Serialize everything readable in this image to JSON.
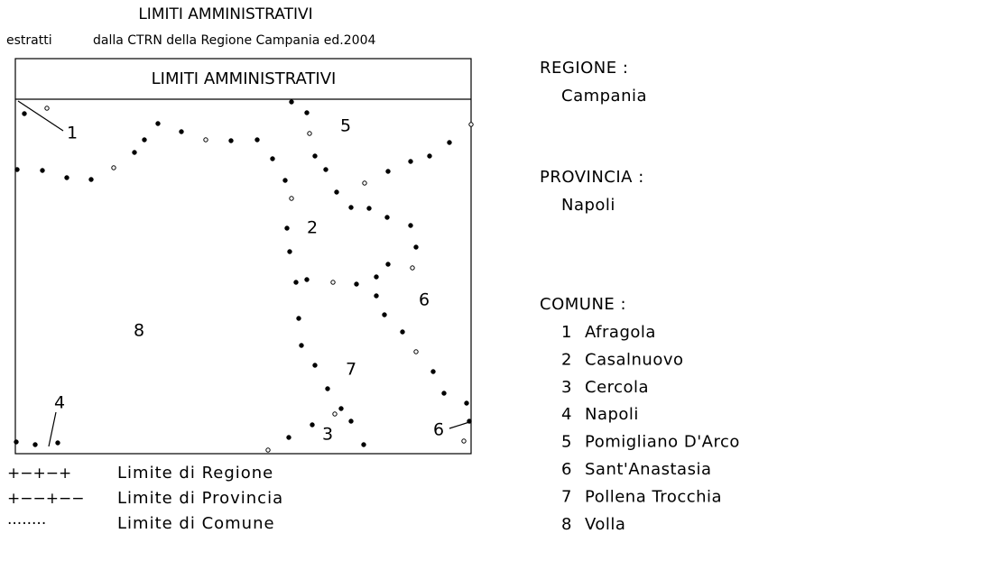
{
  "header": {
    "title": "LIMITI AMMINISTRATIVI",
    "prefix": "estratti",
    "subtitle": "dalla CTRN della Regione Campania ed.2004"
  },
  "map": {
    "title": "LIMITI AMMINISTRATIVI",
    "labels": [
      "1",
      "5",
      "2",
      "6",
      "8",
      "7",
      "4",
      "3",
      "6"
    ]
  },
  "legend": [
    {
      "symbol": "+−+−+",
      "label": "Limite di Regione"
    },
    {
      "symbol": "+−−+−−",
      "label": "Limite di Provincia"
    },
    {
      "symbol": "········",
      "label": "Limite di Comune"
    }
  ],
  "info": {
    "regione_label": "REGIONE :",
    "regione": "Campania",
    "provincia_label": "PROVINCIA :",
    "provincia": "Napoli",
    "comune_label": "COMUNE :",
    "comuni": [
      {
        "num": "1",
        "name": "Afragola"
      },
      {
        "num": "2",
        "name": "Casalnuovo"
      },
      {
        "num": "3",
        "name": "Cercola"
      },
      {
        "num": "4",
        "name": "Napoli"
      },
      {
        "num": "5",
        "name": "Pomigliano D'Arco"
      },
      {
        "num": "6",
        "name": "Sant'Anastasia"
      },
      {
        "num": "7",
        "name": "Pollena Trocchia"
      },
      {
        "num": "8",
        "name": "Volla"
      }
    ]
  }
}
